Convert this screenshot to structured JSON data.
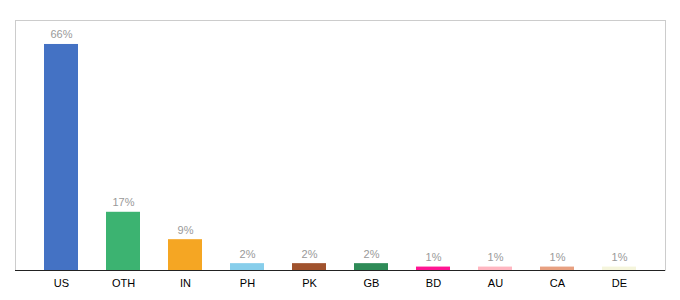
{
  "chart_data": {
    "type": "bar",
    "categories": [
      "US",
      "OTH",
      "IN",
      "PH",
      "PK",
      "GB",
      "BD",
      "AU",
      "CA",
      "DE"
    ],
    "values": [
      66,
      17,
      9,
      2,
      2,
      2,
      1,
      1,
      1,
      1
    ],
    "value_labels": [
      "66%",
      "17%",
      "9%",
      "2%",
      "2%",
      "2%",
      "1%",
      "1%",
      "1%",
      "1%"
    ],
    "colors": [
      "#4472C4",
      "#3CB371",
      "#F5A623",
      "#87CEEB",
      "#A0522D",
      "#2E8B57",
      "#FF1493",
      "#FFB6C1",
      "#E8A080",
      "#F5F5DC"
    ],
    "ylim": [
      0,
      73
    ],
    "data_labels": true,
    "tick_labels": "x",
    "grid": false
  }
}
